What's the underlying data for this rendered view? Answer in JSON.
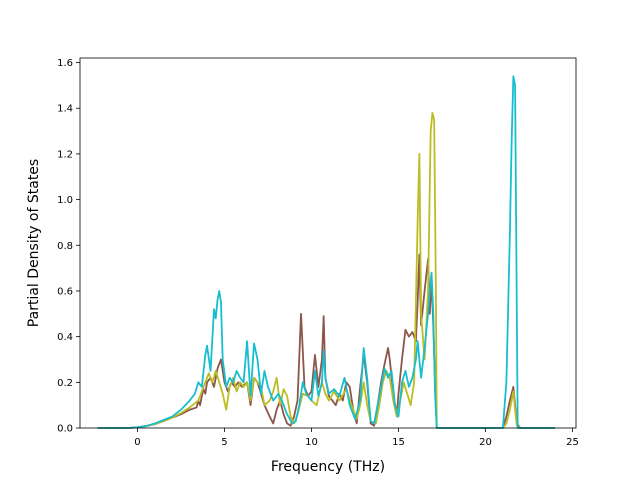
{
  "chart_data": {
    "type": "line",
    "title": "",
    "xlabel": "Frequency (THz)",
    "ylabel": "Partial Density of States",
    "xlim": [
      -3.3,
      25.2
    ],
    "ylim": [
      0,
      1.62
    ],
    "xticks": [
      0,
      5,
      10,
      15,
      20,
      25
    ],
    "yticks": [
      0.0,
      0.2,
      0.4,
      0.6,
      0.8,
      1.0,
      1.2,
      1.4,
      1.6
    ],
    "xtick_labels": [
      "0",
      "5",
      "10",
      "15",
      "20",
      "25"
    ],
    "ytick_labels": [
      "0.0",
      "0.2",
      "0.4",
      "0.6",
      "0.8",
      "1.0",
      "1.2",
      "1.4",
      "1.6"
    ],
    "grid": false,
    "legend": "none",
    "series": [
      {
        "color": "#8c564b",
        "points": [
          [
            -2.3,
            0
          ],
          [
            -0.5,
            0
          ],
          [
            0,
            0.003
          ],
          [
            0.5,
            0.008
          ],
          [
            1,
            0.017
          ],
          [
            1.5,
            0.03
          ],
          [
            2,
            0.045
          ],
          [
            2.5,
            0.06
          ],
          [
            3,
            0.08
          ],
          [
            3.4,
            0.09
          ],
          [
            3.5,
            0.12
          ],
          [
            3.6,
            0.1
          ],
          [
            3.7,
            0.14
          ],
          [
            3.8,
            0.17
          ],
          [
            3.9,
            0.15
          ],
          [
            4,
            0.2
          ],
          [
            4.2,
            0.22
          ],
          [
            4.4,
            0.18
          ],
          [
            4.6,
            0.26
          ],
          [
            4.8,
            0.3
          ],
          [
            5,
            0.2
          ],
          [
            5.2,
            0.16
          ],
          [
            5.4,
            0.2
          ],
          [
            5.6,
            0.18
          ],
          [
            5.8,
            0.2
          ],
          [
            6,
            0.18
          ],
          [
            6.3,
            0.2
          ],
          [
            6.5,
            0.1
          ],
          [
            6.7,
            0.22
          ],
          [
            6.9,
            0.2
          ],
          [
            7.1,
            0.15
          ],
          [
            7.3,
            0.1
          ],
          [
            7.6,
            0.05
          ],
          [
            7.8,
            0.02
          ],
          [
            8,
            0.08
          ],
          [
            8.2,
            0.12
          ],
          [
            8.4,
            0.06
          ],
          [
            8.6,
            0.02
          ],
          [
            8.8,
            0.01
          ],
          [
            9,
            0.05
          ],
          [
            9.2,
            0.12
          ],
          [
            9.4,
            0.5
          ],
          [
            9.6,
            0.18
          ],
          [
            9.8,
            0.14
          ],
          [
            10,
            0.16
          ],
          [
            10.2,
            0.32
          ],
          [
            10.4,
            0.18
          ],
          [
            10.6,
            0.3
          ],
          [
            10.7,
            0.49
          ],
          [
            10.8,
            0.22
          ],
          [
            11,
            0.14
          ],
          [
            11.4,
            0.1
          ],
          [
            11.6,
            0.15
          ],
          [
            11.8,
            0.12
          ],
          [
            12,
            0.2
          ],
          [
            12.2,
            0.18
          ],
          [
            12.4,
            0.08
          ],
          [
            12.6,
            0.02
          ],
          [
            12.8,
            0.18
          ],
          [
            13,
            0.32
          ],
          [
            13.2,
            0.2
          ],
          [
            13.4,
            0.02
          ],
          [
            13.6,
            0.01
          ],
          [
            13.8,
            0.1
          ],
          [
            14,
            0.2
          ],
          [
            14.2,
            0.28
          ],
          [
            14.4,
            0.35
          ],
          [
            14.5,
            0.3
          ],
          [
            14.7,
            0.15
          ],
          [
            14.9,
            0.05
          ],
          [
            15,
            0.15
          ],
          [
            15.2,
            0.3
          ],
          [
            15.4,
            0.43
          ],
          [
            15.6,
            0.4
          ],
          [
            15.8,
            0.42
          ],
          [
            16,
            0.38
          ],
          [
            16.1,
            0.55
          ],
          [
            16.2,
            0.76
          ],
          [
            16.3,
            0.45
          ],
          [
            16.5,
            0.6
          ],
          [
            16.7,
            0.74
          ],
          [
            16.8,
            0.5
          ],
          [
            16.9,
            0.65
          ],
          [
            17,
            0.45
          ],
          [
            17.1,
            0.2
          ],
          [
            17.2,
            0
          ],
          [
            21,
            0
          ],
          [
            21.2,
            0.05
          ],
          [
            21.4,
            0.12
          ],
          [
            21.6,
            0.18
          ],
          [
            21.7,
            0.1
          ],
          [
            21.8,
            0.02
          ],
          [
            22,
            0
          ],
          [
            24,
            0
          ]
        ]
      },
      {
        "color": "#bcbd22",
        "points": [
          [
            -2.3,
            0
          ],
          [
            -0.5,
            0
          ],
          [
            0,
            0.003
          ],
          [
            0.5,
            0.009
          ],
          [
            1,
            0.018
          ],
          [
            1.5,
            0.03
          ],
          [
            2,
            0.046
          ],
          [
            2.5,
            0.065
          ],
          [
            3,
            0.09
          ],
          [
            3.5,
            0.12
          ],
          [
            3.7,
            0.16
          ],
          [
            3.9,
            0.2
          ],
          [
            4.1,
            0.24
          ],
          [
            4.3,
            0.2
          ],
          [
            4.5,
            0.25
          ],
          [
            4.7,
            0.2
          ],
          [
            4.9,
            0.15
          ],
          [
            5.1,
            0.08
          ],
          [
            5.3,
            0.18
          ],
          [
            5.5,
            0.22
          ],
          [
            5.7,
            0.16
          ],
          [
            5.9,
            0.2
          ],
          [
            6.1,
            0.18
          ],
          [
            6.3,
            0.2
          ],
          [
            6.5,
            0.12
          ],
          [
            6.7,
            0.22
          ],
          [
            6.9,
            0.2
          ],
          [
            7.1,
            0.18
          ],
          [
            7.3,
            0.1
          ],
          [
            7.6,
            0.12
          ],
          [
            7.8,
            0.16
          ],
          [
            8,
            0.22
          ],
          [
            8.2,
            0.1
          ],
          [
            8.4,
            0.17
          ],
          [
            8.6,
            0.14
          ],
          [
            8.8,
            0.05
          ],
          [
            9,
            0.02
          ],
          [
            9.2,
            0.06
          ],
          [
            9.5,
            0.15
          ],
          [
            9.8,
            0.14
          ],
          [
            10,
            0.12
          ],
          [
            10.3,
            0.1
          ],
          [
            10.6,
            0.2
          ],
          [
            10.8,
            0.15
          ],
          [
            11,
            0.12
          ],
          [
            11.3,
            0.16
          ],
          [
            11.6,
            0.12
          ],
          [
            12,
            0.17
          ],
          [
            12.3,
            0.1
          ],
          [
            12.6,
            0.04
          ],
          [
            12.8,
            0.1
          ],
          [
            13,
            0.2
          ],
          [
            13.2,
            0.1
          ],
          [
            13.4,
            0.03
          ],
          [
            13.7,
            0.02
          ],
          [
            13.9,
            0.1
          ],
          [
            14.1,
            0.2
          ],
          [
            14.3,
            0.25
          ],
          [
            14.5,
            0.22
          ],
          [
            14.7,
            0.12
          ],
          [
            14.9,
            0.05
          ],
          [
            15.1,
            0.12
          ],
          [
            15.3,
            0.2
          ],
          [
            15.5,
            0.15
          ],
          [
            15.7,
            0.1
          ],
          [
            15.9,
            0.2
          ],
          [
            16.1,
            0.9
          ],
          [
            16.2,
            1.2
          ],
          [
            16.3,
            0.5
          ],
          [
            16.5,
            0.3
          ],
          [
            16.7,
            0.6
          ],
          [
            16.85,
            1.3
          ],
          [
            16.95,
            1.38
          ],
          [
            17.05,
            1.35
          ],
          [
            17.15,
            0.6
          ],
          [
            17.2,
            0
          ],
          [
            21,
            0
          ],
          [
            21.2,
            0.02
          ],
          [
            21.4,
            0.08
          ],
          [
            21.6,
            0.16
          ],
          [
            21.7,
            0.08
          ],
          [
            21.8,
            0.01
          ],
          [
            22,
            0
          ],
          [
            24,
            0
          ]
        ]
      },
      {
        "color": "#17becf",
        "points": [
          [
            -2.3,
            0
          ],
          [
            -0.5,
            0
          ],
          [
            0,
            0.003
          ],
          [
            0.5,
            0.009
          ],
          [
            1,
            0.02
          ],
          [
            1.5,
            0.035
          ],
          [
            2,
            0.05
          ],
          [
            2.5,
            0.08
          ],
          [
            3,
            0.12
          ],
          [
            3.3,
            0.15
          ],
          [
            3.5,
            0.2
          ],
          [
            3.7,
            0.18
          ],
          [
            3.9,
            0.32
          ],
          [
            4,
            0.36
          ],
          [
            4.2,
            0.25
          ],
          [
            4.4,
            0.52
          ],
          [
            4.5,
            0.48
          ],
          [
            4.6,
            0.56
          ],
          [
            4.7,
            0.6
          ],
          [
            4.8,
            0.55
          ],
          [
            4.9,
            0.3
          ],
          [
            5.1,
            0.18
          ],
          [
            5.3,
            0.22
          ],
          [
            5.5,
            0.2
          ],
          [
            5.7,
            0.25
          ],
          [
            5.9,
            0.22
          ],
          [
            6.1,
            0.2
          ],
          [
            6.3,
            0.38
          ],
          [
            6.5,
            0.14
          ],
          [
            6.7,
            0.37
          ],
          [
            6.9,
            0.3
          ],
          [
            7.1,
            0.15
          ],
          [
            7.3,
            0.25
          ],
          [
            7.5,
            0.18
          ],
          [
            7.8,
            0.12
          ],
          [
            8.1,
            0.15
          ],
          [
            8.3,
            0.12
          ],
          [
            8.6,
            0.06
          ],
          [
            8.9,
            0.02
          ],
          [
            9.1,
            0.03
          ],
          [
            9.3,
            0.1
          ],
          [
            9.5,
            0.2
          ],
          [
            9.7,
            0.15
          ],
          [
            10,
            0.12
          ],
          [
            10.2,
            0.25
          ],
          [
            10.4,
            0.14
          ],
          [
            10.6,
            0.2
          ],
          [
            10.7,
            0.34
          ],
          [
            10.8,
            0.22
          ],
          [
            11,
            0.15
          ],
          [
            11.3,
            0.17
          ],
          [
            11.6,
            0.14
          ],
          [
            11.9,
            0.22
          ],
          [
            12.2,
            0.1
          ],
          [
            12.5,
            0.04
          ],
          [
            12.8,
            0.12
          ],
          [
            13,
            0.35
          ],
          [
            13.2,
            0.22
          ],
          [
            13.4,
            0.03
          ],
          [
            13.6,
            0.02
          ],
          [
            13.8,
            0.1
          ],
          [
            14,
            0.18
          ],
          [
            14.2,
            0.26
          ],
          [
            14.4,
            0.22
          ],
          [
            14.6,
            0.25
          ],
          [
            14.8,
            0.1
          ],
          [
            15,
            0.05
          ],
          [
            15.2,
            0.2
          ],
          [
            15.4,
            0.25
          ],
          [
            15.6,
            0.18
          ],
          [
            15.8,
            0.22
          ],
          [
            16,
            0.3
          ],
          [
            16.1,
            0.38
          ],
          [
            16.3,
            0.22
          ],
          [
            16.5,
            0.35
          ],
          [
            16.7,
            0.5
          ],
          [
            16.8,
            0.6
          ],
          [
            16.9,
            0.68
          ],
          [
            17,
            0.5
          ],
          [
            17.1,
            0.15
          ],
          [
            17.2,
            0
          ],
          [
            21,
            0
          ],
          [
            21.2,
            0.2
          ],
          [
            21.4,
            0.85
          ],
          [
            21.5,
            1.25
          ],
          [
            21.6,
            1.54
          ],
          [
            21.7,
            1.5
          ],
          [
            21.8,
            0.5
          ],
          [
            21.85,
            0
          ],
          [
            24,
            0
          ]
        ]
      }
    ]
  }
}
